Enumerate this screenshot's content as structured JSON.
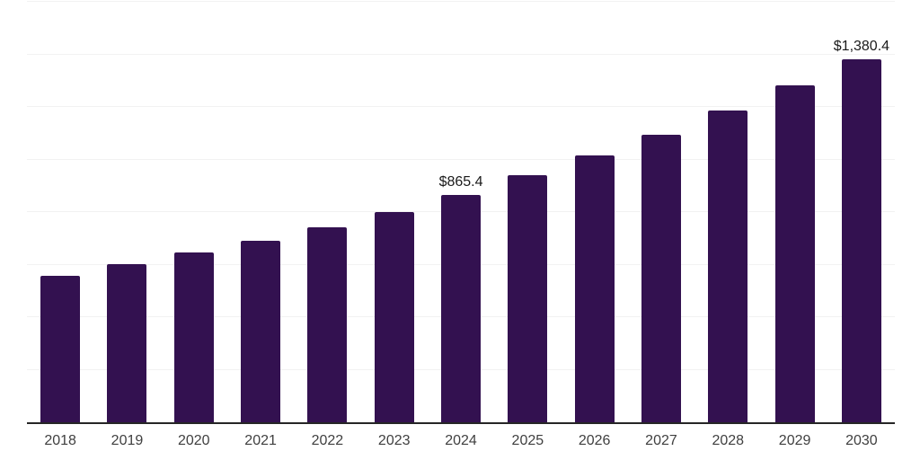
{
  "chart_data": {
    "type": "bar",
    "title": "",
    "xlabel": "",
    "ylabel": "",
    "categories": [
      "2018",
      "2019",
      "2020",
      "2021",
      "2022",
      "2023",
      "2024",
      "2025",
      "2026",
      "2027",
      "2028",
      "2029",
      "2030"
    ],
    "values": [
      559,
      602,
      645,
      691,
      743,
      801,
      865.4,
      940,
      1016,
      1095,
      1187,
      1281,
      1380.4
    ],
    "value_labels": {
      "6": "$865.4",
      "12": "$1,380.4"
    },
    "ylim": [
      0,
      1600
    ],
    "gridline_step": 200,
    "grid": "horizontal-only",
    "legend": "none",
    "y_tick_labels_visible": false,
    "colors": {
      "bar": "#331150",
      "axis_line": "#262626",
      "gridline": "#f2f2f2",
      "value_label": "#1a1a1a",
      "tick_label": "#404040",
      "background": "#ffffff"
    }
  }
}
